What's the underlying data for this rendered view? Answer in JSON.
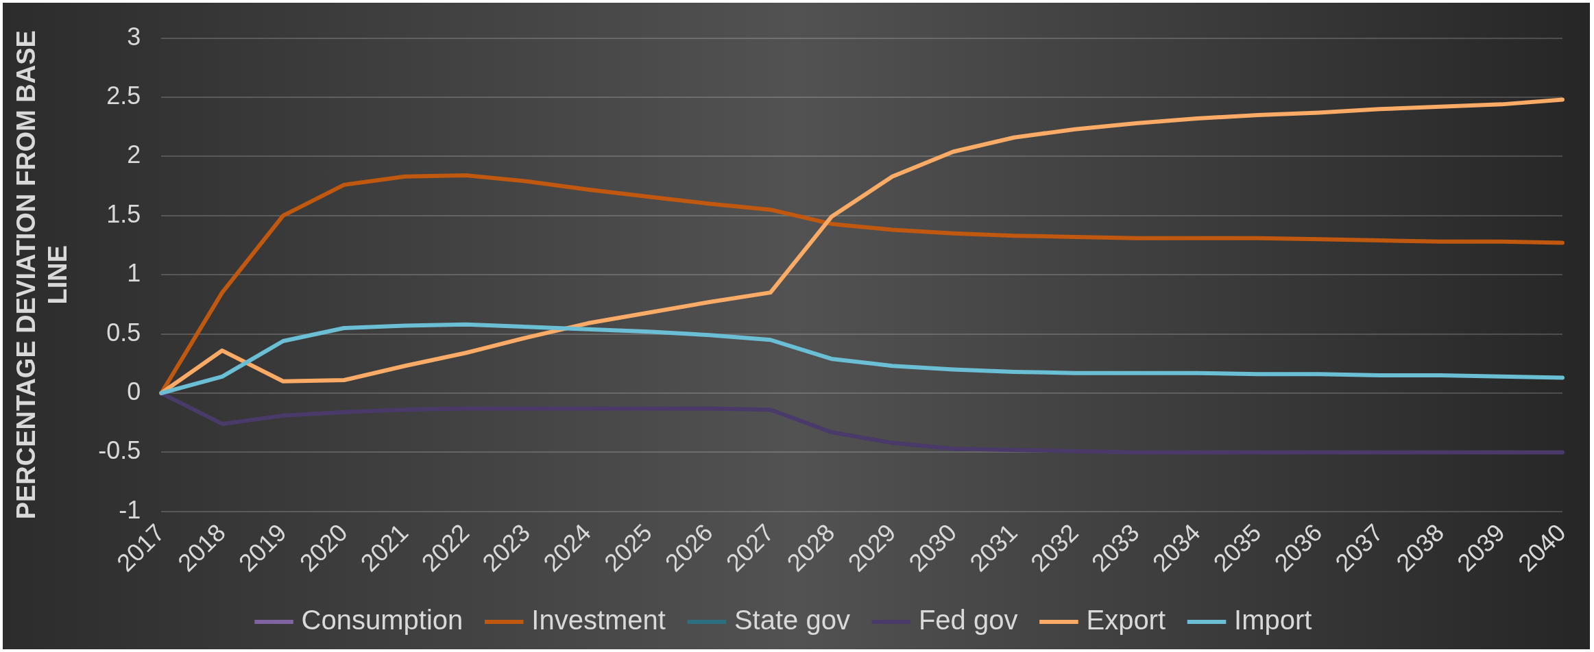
{
  "chart_data": {
    "type": "line",
    "ylabel": "PERCENTAGE DEVIATION FROM BASE LINE",
    "categories": [
      "2017",
      "2018",
      "2019",
      "2020",
      "2021",
      "2022",
      "2023",
      "2024",
      "2025",
      "2026",
      "2027",
      "2028",
      "2029",
      "2030",
      "2031",
      "2032",
      "2033",
      "2034",
      "2035",
      "2036",
      "2037",
      "2038",
      "2039",
      "2040"
    ],
    "series": [
      {
        "name": "Consumption",
        "color": "#8064a2",
        "values": [
          null,
          null,
          null,
          null,
          null,
          null,
          null,
          null,
          null,
          null,
          null,
          null,
          null,
          null,
          null,
          null,
          null,
          null,
          null,
          null,
          null,
          null,
          null,
          null
        ]
      },
      {
        "name": "Investment",
        "color": "#c0580f",
        "values": [
          0,
          0.85,
          1.5,
          1.76,
          1.83,
          1.84,
          1.79,
          1.72,
          1.66,
          1.6,
          1.55,
          1.43,
          1.38,
          1.35,
          1.33,
          1.32,
          1.31,
          1.31,
          1.31,
          1.3,
          1.29,
          1.28,
          1.28,
          1.27
        ]
      },
      {
        "name": "State gov",
        "color": "#2b6f80",
        "values": [
          null,
          null,
          null,
          null,
          null,
          null,
          null,
          null,
          null,
          null,
          null,
          null,
          null,
          null,
          null,
          null,
          null,
          null,
          null,
          null,
          null,
          null,
          null,
          null
        ]
      },
      {
        "name": "Fed gov",
        "color": "#4a3a6a",
        "values": [
          0,
          -0.26,
          -0.19,
          -0.16,
          -0.14,
          -0.13,
          -0.13,
          -0.13,
          -0.13,
          -0.13,
          -0.14,
          -0.33,
          -0.42,
          -0.47,
          -0.48,
          -0.49,
          -0.5,
          -0.5,
          -0.5,
          -0.5,
          -0.5,
          -0.5,
          -0.5,
          -0.5
        ]
      },
      {
        "name": "Export",
        "color": "#fbab66",
        "values": [
          0,
          0.36,
          0.1,
          0.11,
          0.23,
          0.34,
          0.47,
          0.59,
          0.68,
          0.77,
          0.85,
          1.49,
          1.83,
          2.04,
          2.16,
          2.23,
          2.28,
          2.32,
          2.35,
          2.37,
          2.4,
          2.42,
          2.44,
          2.48
        ]
      },
      {
        "name": "Import",
        "color": "#6bbfd5",
        "values": [
          0,
          0.14,
          0.44,
          0.55,
          0.57,
          0.58,
          0.56,
          0.54,
          0.52,
          0.49,
          0.45,
          0.29,
          0.23,
          0.2,
          0.18,
          0.17,
          0.17,
          0.17,
          0.16,
          0.16,
          0.15,
          0.15,
          0.14,
          0.13
        ]
      }
    ],
    "ylim": [
      -1,
      3
    ],
    "yticks": [
      -1,
      -0.5,
      0,
      0.5,
      1,
      1.5,
      2,
      2.5,
      3
    ],
    "grid": "y",
    "legend": "bottom",
    "marker": "none",
    "line_style": "solid"
  }
}
